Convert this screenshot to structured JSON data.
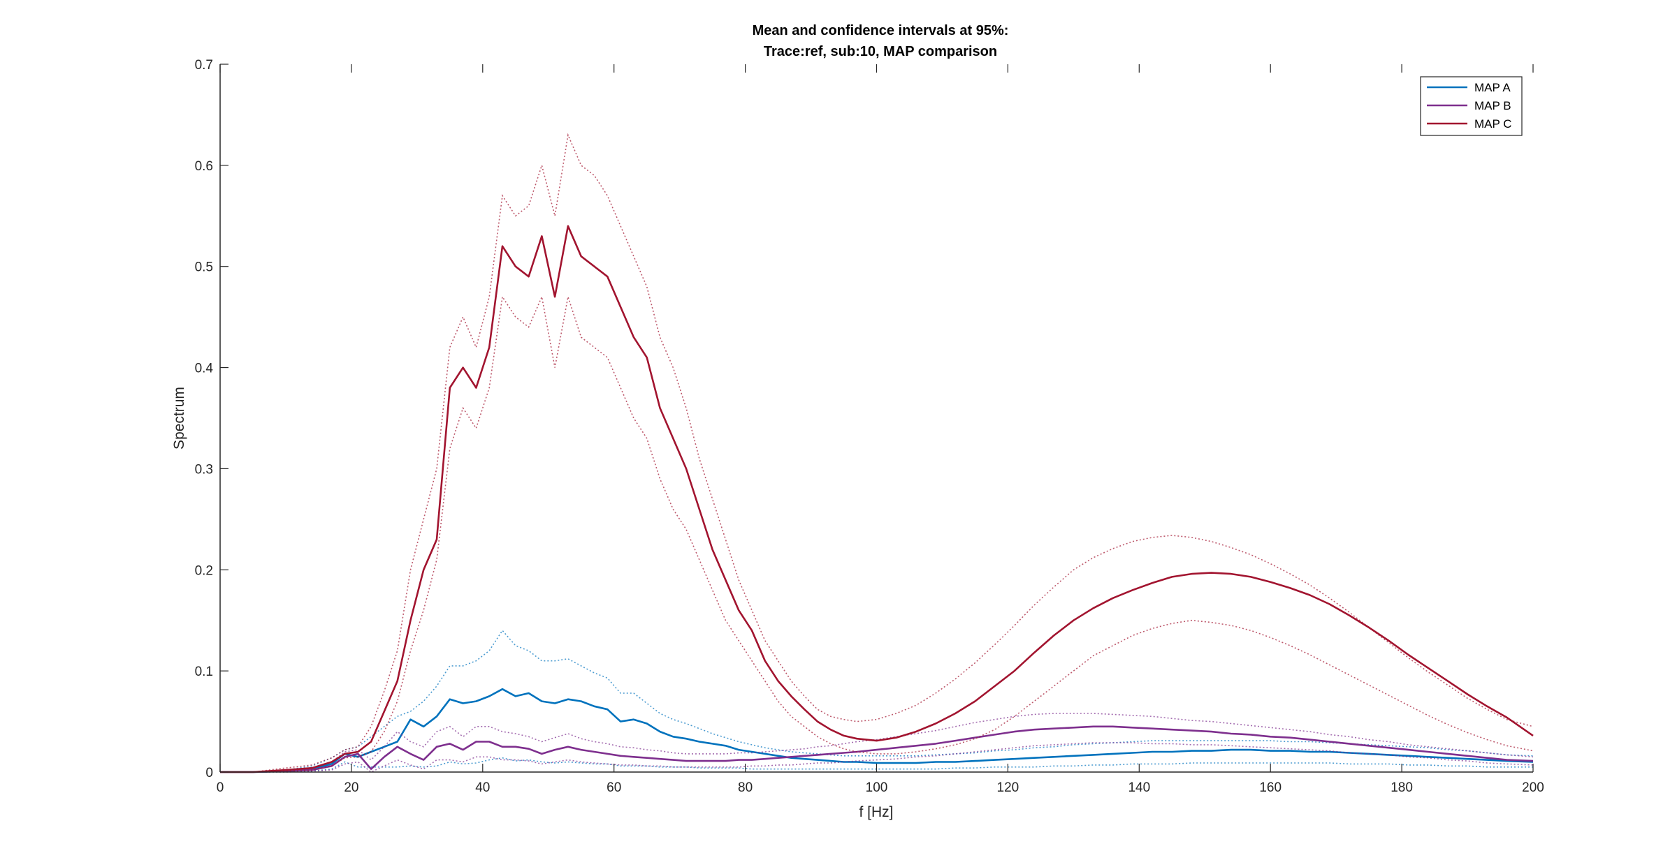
{
  "chart_data": {
    "type": "line",
    "title": [
      "Mean and confidence intervals at 95%:",
      "Trace:ref, sub:10, MAP comparison"
    ],
    "xlabel": "f [Hz]",
    "ylabel": "Spectrum",
    "xlim": [
      0,
      200
    ],
    "ylim": [
      0,
      0.7
    ],
    "xticks": [
      0,
      20,
      40,
      60,
      80,
      100,
      120,
      140,
      160,
      180,
      200
    ],
    "yticks": [
      0,
      0.1,
      0.2,
      0.3,
      0.4,
      0.5,
      0.6,
      0.7
    ],
    "xtick_labels": [
      "0",
      "20",
      "40",
      "60",
      "80",
      "100",
      "120",
      "140",
      "160",
      "180",
      "200"
    ],
    "ytick_labels": [
      "0",
      "0.1",
      "0.2",
      "0.3",
      "0.4",
      "0.5",
      "0.6",
      "0.7"
    ],
    "grid": false,
    "legend_position": "top-right",
    "x": [
      0,
      5,
      10,
      14,
      17,
      19,
      21,
      23,
      25,
      27,
      29,
      31,
      33,
      35,
      37,
      39,
      41,
      43,
      45,
      47,
      49,
      51,
      53,
      55,
      57,
      59,
      61,
      63,
      65,
      67,
      69,
      71,
      73,
      75,
      77,
      79,
      81,
      83,
      85,
      87,
      89,
      91,
      93,
      95,
      97,
      100,
      103,
      106,
      109,
      112,
      115,
      118,
      121,
      124,
      127,
      130,
      133,
      136,
      139,
      142,
      145,
      148,
      151,
      154,
      157,
      160,
      163,
      166,
      169,
      172,
      175,
      178,
      181,
      184,
      187,
      190,
      193,
      196,
      200
    ],
    "series": [
      {
        "name": "MAP A",
        "color": "#0072BD",
        "mean": [
          0,
          0,
          0.001,
          0.003,
          0.008,
          0.018,
          0.015,
          0.02,
          0.025,
          0.03,
          0.052,
          0.045,
          0.055,
          0.072,
          0.068,
          0.07,
          0.075,
          0.082,
          0.075,
          0.078,
          0.07,
          0.068,
          0.072,
          0.07,
          0.065,
          0.062,
          0.05,
          0.052,
          0.048,
          0.04,
          0.035,
          0.033,
          0.03,
          0.028,
          0.026,
          0.022,
          0.02,
          0.018,
          0.016,
          0.014,
          0.013,
          0.012,
          0.011,
          0.01,
          0.01,
          0.009,
          0.009,
          0.009,
          0.01,
          0.01,
          0.011,
          0.012,
          0.013,
          0.014,
          0.015,
          0.016,
          0.017,
          0.018,
          0.019,
          0.02,
          0.02,
          0.021,
          0.021,
          0.022,
          0.022,
          0.021,
          0.021,
          0.02,
          0.02,
          0.019,
          0.018,
          0.017,
          0.016,
          0.015,
          0.014,
          0.013,
          0.012,
          0.011,
          0.01
        ],
        "upper": [
          0,
          0,
          0.002,
          0.006,
          0.014,
          0.022,
          0.025,
          0.035,
          0.045,
          0.055,
          0.06,
          0.07,
          0.085,
          0.105,
          0.105,
          0.11,
          0.12,
          0.14,
          0.125,
          0.12,
          0.11,
          0.11,
          0.112,
          0.105,
          0.098,
          0.093,
          0.078,
          0.078,
          0.068,
          0.058,
          0.052,
          0.048,
          0.043,
          0.038,
          0.034,
          0.03,
          0.027,
          0.024,
          0.022,
          0.02,
          0.019,
          0.018,
          0.017,
          0.016,
          0.016,
          0.016,
          0.016,
          0.016,
          0.017,
          0.018,
          0.019,
          0.021,
          0.022,
          0.024,
          0.025,
          0.027,
          0.028,
          0.029,
          0.03,
          0.031,
          0.031,
          0.031,
          0.031,
          0.031,
          0.031,
          0.031,
          0.03,
          0.03,
          0.029,
          0.028,
          0.027,
          0.026,
          0.025,
          0.024,
          0.022,
          0.021,
          0.019,
          0.017,
          0.016
        ],
        "lower": [
          0,
          0,
          0,
          0.001,
          0.003,
          0.01,
          0.005,
          0.005,
          0.005,
          0.005,
          0.006,
          0.005,
          0.006,
          0.01,
          0.008,
          0.009,
          0.012,
          0.014,
          0.011,
          0.012,
          0.01,
          0.009,
          0.01,
          0.009,
          0.008,
          0.008,
          0.006,
          0.006,
          0.006,
          0.005,
          0.005,
          0.005,
          0.004,
          0.004,
          0.004,
          0.004,
          0.003,
          0.003,
          0.003,
          0.003,
          0.003,
          0.003,
          0.003,
          0.003,
          0.003,
          0.003,
          0.003,
          0.003,
          0.003,
          0.004,
          0.004,
          0.005,
          0.005,
          0.005,
          0.006,
          0.006,
          0.007,
          0.007,
          0.008,
          0.008,
          0.008,
          0.009,
          0.009,
          0.009,
          0.009,
          0.009,
          0.009,
          0.009,
          0.009,
          0.008,
          0.008,
          0.008,
          0.007,
          0.007,
          0.006,
          0.006,
          0.005,
          0.005,
          0.005
        ]
      },
      {
        "name": "MAP B",
        "color": "#7E2F8E",
        "mean": [
          0,
          0,
          0.001,
          0.002,
          0.006,
          0.015,
          0.018,
          0.003,
          0.015,
          0.025,
          0.018,
          0.012,
          0.025,
          0.028,
          0.022,
          0.03,
          0.03,
          0.025,
          0.025,
          0.023,
          0.018,
          0.022,
          0.025,
          0.022,
          0.02,
          0.018,
          0.016,
          0.015,
          0.014,
          0.013,
          0.012,
          0.011,
          0.011,
          0.011,
          0.011,
          0.012,
          0.012,
          0.013,
          0.014,
          0.015,
          0.016,
          0.017,
          0.018,
          0.019,
          0.02,
          0.022,
          0.024,
          0.026,
          0.028,
          0.031,
          0.034,
          0.037,
          0.04,
          0.042,
          0.043,
          0.044,
          0.045,
          0.045,
          0.044,
          0.043,
          0.042,
          0.041,
          0.04,
          0.038,
          0.037,
          0.035,
          0.034,
          0.032,
          0.03,
          0.028,
          0.026,
          0.024,
          0.022,
          0.02,
          0.018,
          0.016,
          0.014,
          0.012,
          0.011
        ],
        "upper": [
          0,
          0,
          0.002,
          0.004,
          0.01,
          0.02,
          0.022,
          0.012,
          0.025,
          0.04,
          0.03,
          0.025,
          0.04,
          0.045,
          0.035,
          0.045,
          0.045,
          0.04,
          0.038,
          0.035,
          0.03,
          0.034,
          0.038,
          0.033,
          0.03,
          0.028,
          0.025,
          0.024,
          0.022,
          0.021,
          0.019,
          0.018,
          0.018,
          0.018,
          0.018,
          0.019,
          0.019,
          0.02,
          0.021,
          0.022,
          0.023,
          0.025,
          0.026,
          0.028,
          0.03,
          0.032,
          0.035,
          0.038,
          0.041,
          0.045,
          0.049,
          0.052,
          0.055,
          0.057,
          0.058,
          0.058,
          0.058,
          0.057,
          0.056,
          0.055,
          0.053,
          0.051,
          0.05,
          0.048,
          0.046,
          0.044,
          0.042,
          0.04,
          0.037,
          0.035,
          0.032,
          0.03,
          0.027,
          0.025,
          0.023,
          0.021,
          0.019,
          0.017,
          0.015
        ],
        "lower": [
          0,
          0,
          0,
          0.001,
          0.002,
          0.008,
          0.01,
          0,
          0.006,
          0.012,
          0.007,
          0.003,
          0.012,
          0.012,
          0.01,
          0.015,
          0.015,
          0.012,
          0.012,
          0.011,
          0.008,
          0.01,
          0.012,
          0.01,
          0.009,
          0.008,
          0.007,
          0.007,
          0.006,
          0.006,
          0.005,
          0.005,
          0.005,
          0.005,
          0.005,
          0.005,
          0.006,
          0.006,
          0.007,
          0.007,
          0.008,
          0.009,
          0.009,
          0.01,
          0.011,
          0.012,
          0.013,
          0.015,
          0.016,
          0.018,
          0.02,
          0.022,
          0.024,
          0.026,
          0.027,
          0.028,
          0.029,
          0.029,
          0.029,
          0.028,
          0.028,
          0.027,
          0.027,
          0.026,
          0.025,
          0.024,
          0.023,
          0.022,
          0.021,
          0.019,
          0.018,
          0.017,
          0.015,
          0.014,
          0.012,
          0.011,
          0.009,
          0.008,
          0.007
        ]
      },
      {
        "name": "MAP C",
        "color": "#A2142F",
        "mean": [
          0,
          0,
          0.002,
          0.004,
          0.01,
          0.018,
          0.02,
          0.03,
          0.06,
          0.09,
          0.15,
          0.2,
          0.23,
          0.38,
          0.4,
          0.38,
          0.42,
          0.52,
          0.5,
          0.49,
          0.53,
          0.47,
          0.54,
          0.51,
          0.5,
          0.49,
          0.46,
          0.43,
          0.41,
          0.36,
          0.33,
          0.3,
          0.26,
          0.22,
          0.19,
          0.16,
          0.14,
          0.11,
          0.09,
          0.075,
          0.062,
          0.05,
          0.042,
          0.036,
          0.033,
          0.031,
          0.034,
          0.04,
          0.048,
          0.058,
          0.07,
          0.085,
          0.1,
          0.118,
          0.135,
          0.15,
          0.162,
          0.172,
          0.18,
          0.187,
          0.193,
          0.196,
          0.197,
          0.196,
          0.193,
          0.188,
          0.182,
          0.175,
          0.166,
          0.155,
          0.143,
          0.13,
          0.116,
          0.103,
          0.09,
          0.077,
          0.065,
          0.054,
          0.036
        ],
        "upper": [
          0,
          0,
          0.004,
          0.007,
          0.014,
          0.022,
          0.025,
          0.045,
          0.08,
          0.12,
          0.2,
          0.25,
          0.3,
          0.42,
          0.45,
          0.42,
          0.47,
          0.57,
          0.55,
          0.56,
          0.6,
          0.55,
          0.63,
          0.6,
          0.59,
          0.57,
          0.54,
          0.51,
          0.48,
          0.43,
          0.4,
          0.36,
          0.31,
          0.27,
          0.23,
          0.19,
          0.16,
          0.13,
          0.11,
          0.09,
          0.075,
          0.062,
          0.055,
          0.052,
          0.05,
          0.052,
          0.058,
          0.066,
          0.078,
          0.092,
          0.108,
          0.126,
          0.145,
          0.165,
          0.183,
          0.2,
          0.212,
          0.221,
          0.228,
          0.232,
          0.234,
          0.232,
          0.228,
          0.222,
          0.215,
          0.206,
          0.196,
          0.185,
          0.172,
          0.158,
          0.143,
          0.128,
          0.113,
          0.099,
          0.086,
          0.073,
          0.062,
          0.052,
          0.045
        ],
        "lower": [
          0,
          0,
          0.001,
          0.002,
          0.006,
          0.014,
          0.015,
          0.02,
          0.04,
          0.07,
          0.12,
          0.16,
          0.21,
          0.32,
          0.36,
          0.34,
          0.38,
          0.47,
          0.45,
          0.44,
          0.47,
          0.4,
          0.47,
          0.43,
          0.42,
          0.41,
          0.38,
          0.35,
          0.33,
          0.29,
          0.26,
          0.24,
          0.21,
          0.18,
          0.15,
          0.13,
          0.11,
          0.09,
          0.07,
          0.055,
          0.045,
          0.035,
          0.028,
          0.023,
          0.02,
          0.018,
          0.018,
          0.02,
          0.023,
          0.027,
          0.033,
          0.042,
          0.055,
          0.07,
          0.085,
          0.1,
          0.115,
          0.125,
          0.135,
          0.142,
          0.147,
          0.15,
          0.148,
          0.145,
          0.14,
          0.133,
          0.125,
          0.116,
          0.106,
          0.096,
          0.086,
          0.076,
          0.066,
          0.056,
          0.047,
          0.039,
          0.032,
          0.026,
          0.021
        ]
      }
    ]
  }
}
